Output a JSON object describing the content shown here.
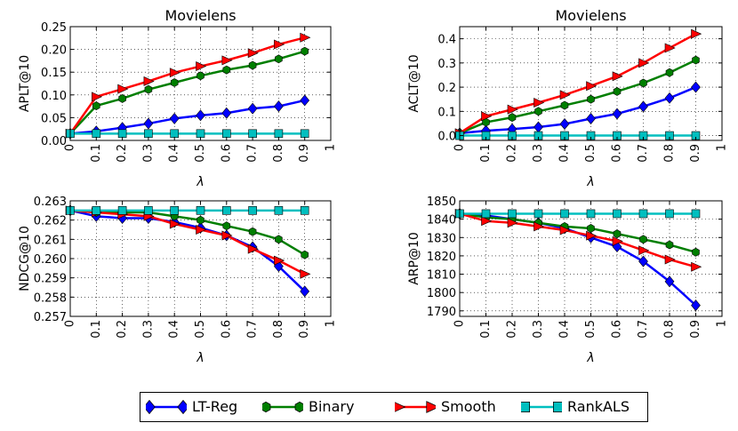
{
  "series_styles": [
    {
      "name": "LT-Reg",
      "color": "#0000ff",
      "marker": "diamond"
    },
    {
      "name": "Binary",
      "color": "#007f00",
      "marker": "hexagon"
    },
    {
      "name": "Smooth",
      "color": "#ff0000",
      "marker": "triangle-right"
    },
    {
      "name": "RankALS",
      "color": "#00bfbf",
      "marker": "square"
    }
  ],
  "legend": {
    "labels": [
      "LT-Reg",
      "Binary",
      "Smooth",
      "RankALS"
    ],
    "placement": "bottom-center"
  },
  "chart_data": [
    {
      "type": "line",
      "title": "Movielens",
      "xlabel": "λ",
      "ylabel": "APLT@10",
      "xlim": [
        0,
        1
      ],
      "ylim": [
        0,
        0.25
      ],
      "xticks": [
        0,
        0.1,
        0.2,
        0.3,
        0.4,
        0.5,
        0.6,
        0.7,
        0.8,
        0.9,
        1
      ],
      "xtick_labels": [
        "0",
        "0.1",
        "0.2",
        "0.3",
        "0.4",
        "0.5",
        "0.6",
        "0.7",
        "0.8",
        "0.9",
        "1"
      ],
      "yticks": [
        0,
        0.05,
        0.1,
        0.15,
        0.2,
        0.25
      ],
      "ytick_labels": [
        "0.00",
        "0.05",
        "0.10",
        "0.15",
        "0.20",
        "0.25"
      ],
      "grid": true,
      "x": [
        0,
        0.1,
        0.2,
        0.3,
        0.4,
        0.5,
        0.6,
        0.7,
        0.8,
        0.9
      ],
      "series": [
        {
          "name": "LT-Reg",
          "values": [
            0.015,
            0.02,
            0.028,
            0.037,
            0.048,
            0.055,
            0.06,
            0.07,
            0.075,
            0.088
          ]
        },
        {
          "name": "Binary",
          "values": [
            0.015,
            0.076,
            0.092,
            0.112,
            0.127,
            0.142,
            0.155,
            0.165,
            0.179,
            0.196
          ]
        },
        {
          "name": "Smooth",
          "values": [
            0.015,
            0.096,
            0.113,
            0.13,
            0.149,
            0.163,
            0.176,
            0.192,
            0.211,
            0.226
          ]
        },
        {
          "name": "RankALS",
          "values": [
            0.015,
            0.015,
            0.015,
            0.015,
            0.015,
            0.015,
            0.015,
            0.015,
            0.015,
            0.015
          ]
        }
      ]
    },
    {
      "type": "line",
      "title": "Movielens",
      "xlabel": "λ",
      "ylabel": "ACLT@10",
      "xlim": [
        0,
        1
      ],
      "ylim": [
        -0.02,
        0.45
      ],
      "xticks": [
        0,
        0.1,
        0.2,
        0.3,
        0.4,
        0.5,
        0.6,
        0.7,
        0.8,
        0.9,
        1
      ],
      "xtick_labels": [
        "0",
        "0.1",
        "0.2",
        "0.3",
        "0.4",
        "0.5",
        "0.6",
        "0.7",
        "0.8",
        "0.9",
        "1"
      ],
      "yticks": [
        0,
        0.1,
        0.2,
        0.3,
        0.4
      ],
      "ytick_labels": [
        "0.0",
        "0.1",
        "0.2",
        "0.3",
        "0.4"
      ],
      "grid": true,
      "x": [
        0,
        0.1,
        0.2,
        0.3,
        0.4,
        0.5,
        0.6,
        0.7,
        0.8,
        0.9
      ],
      "series": [
        {
          "name": "LT-Reg",
          "values": [
            0.01,
            0.02,
            0.027,
            0.035,
            0.048,
            0.07,
            0.09,
            0.12,
            0.155,
            0.2
          ]
        },
        {
          "name": "Binary",
          "values": [
            0.01,
            0.055,
            0.075,
            0.1,
            0.125,
            0.15,
            0.182,
            0.217,
            0.26,
            0.312
          ]
        },
        {
          "name": "Smooth",
          "values": [
            0.01,
            0.08,
            0.108,
            0.136,
            0.168,
            0.205,
            0.245,
            0.3,
            0.362,
            0.42
          ]
        },
        {
          "name": "RankALS",
          "values": [
            0.0,
            0.0,
            0.0,
            0.0,
            0.0,
            0.0,
            0.0,
            0.0,
            0.0,
            0.0
          ]
        }
      ]
    },
    {
      "type": "line",
      "title": "",
      "xlabel": "λ",
      "ylabel": "NDCG@10",
      "xlim": [
        0,
        1
      ],
      "ylim": [
        0.257,
        0.263
      ],
      "xticks": [
        0,
        0.1,
        0.2,
        0.3,
        0.4,
        0.5,
        0.6,
        0.7,
        0.8,
        0.9,
        1
      ],
      "xtick_labels": [
        "0",
        "0.1",
        "0.2",
        "0.3",
        "0.4",
        "0.5",
        "0.6",
        "0.7",
        "0.8",
        "0.9",
        "1"
      ],
      "yticks": [
        0.257,
        0.258,
        0.259,
        0.26,
        0.261,
        0.262,
        0.263
      ],
      "ytick_labels": [
        "0.257",
        "0.258",
        "0.259",
        "0.260",
        "0.261",
        "0.262",
        "0.263"
      ],
      "grid": true,
      "x": [
        0,
        0.1,
        0.2,
        0.3,
        0.4,
        0.5,
        0.6,
        0.7,
        0.8,
        0.9
      ],
      "series": [
        {
          "name": "LT-Reg",
          "values": [
            0.2625,
            0.2622,
            0.2621,
            0.2621,
            0.2619,
            0.2616,
            0.2612,
            0.2606,
            0.2596,
            0.2583
          ]
        },
        {
          "name": "Binary",
          "values": [
            0.2625,
            0.2624,
            0.2624,
            0.2624,
            0.2622,
            0.262,
            0.2617,
            0.2614,
            0.261,
            0.2602
          ]
        },
        {
          "name": "Smooth",
          "values": [
            0.2625,
            0.2624,
            0.2623,
            0.2622,
            0.2618,
            0.2615,
            0.2612,
            0.2605,
            0.2599,
            0.2592
          ]
        },
        {
          "name": "RankALS",
          "values": [
            0.2625,
            0.2625,
            0.2625,
            0.2625,
            0.2625,
            0.2625,
            0.2625,
            0.2625,
            0.2625,
            0.2625
          ]
        }
      ]
    },
    {
      "type": "line",
      "title": "",
      "xlabel": "λ",
      "ylabel": "ARP@10",
      "xlim": [
        0,
        1
      ],
      "ylim": [
        1787,
        1850
      ],
      "xticks": [
        0,
        0.1,
        0.2,
        0.3,
        0.4,
        0.5,
        0.6,
        0.7,
        0.8,
        0.9,
        1
      ],
      "xtick_labels": [
        "0",
        "0.1",
        "0.2",
        "0.3",
        "0.4",
        "0.5",
        "0.6",
        "0.7",
        "0.8",
        "0.9",
        "1"
      ],
      "yticks": [
        1790,
        1800,
        1810,
        1820,
        1830,
        1840,
        1850
      ],
      "ytick_labels": [
        "1790",
        "1800",
        "1810",
        "1820",
        "1830",
        "1840",
        "1850"
      ],
      "grid": true,
      "x": [
        0,
        0.1,
        0.2,
        0.3,
        0.4,
        0.5,
        0.6,
        0.7,
        0.8,
        0.9
      ],
      "series": [
        {
          "name": "LT-Reg",
          "values": [
            1843,
            1842,
            1840,
            1838,
            1835,
            1830,
            1825,
            1817,
            1806,
            1793
          ]
        },
        {
          "name": "Binary",
          "values": [
            1843,
            1841,
            1840,
            1838,
            1836,
            1835,
            1832,
            1829,
            1826,
            1822
          ]
        },
        {
          "name": "Smooth",
          "values": [
            1843,
            1839,
            1838,
            1836,
            1834,
            1831,
            1828,
            1823,
            1818,
            1814
          ]
        },
        {
          "name": "RankALS",
          "values": [
            1843,
            1843,
            1843,
            1843,
            1843,
            1843,
            1843,
            1843,
            1843,
            1843
          ]
        }
      ]
    }
  ]
}
